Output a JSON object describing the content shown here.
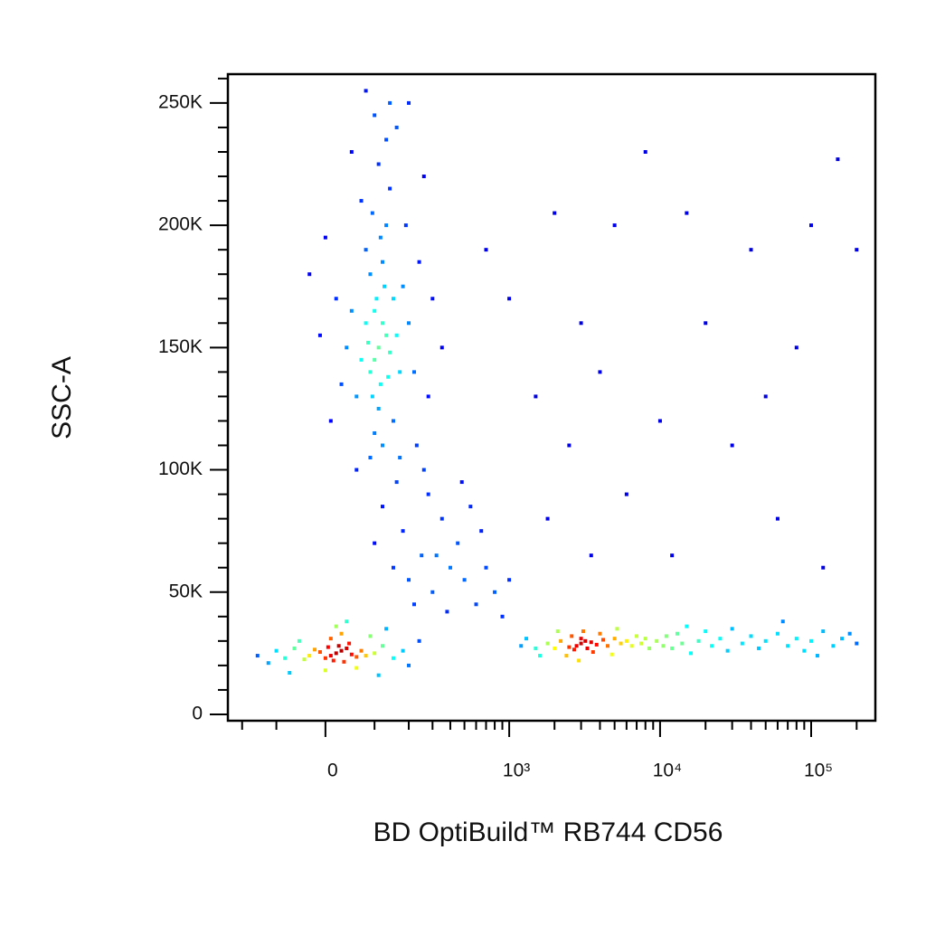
{
  "chart_data": {
    "type": "scatter",
    "xlabel": "BD OptiBuild™ RB744 CD56",
    "ylabel": "SSC-A",
    "colormap": "jet",
    "xscale": "biexponential",
    "xlim": [
      -256,
      266000
    ],
    "ylim": [
      -2600,
      261800
    ],
    "xticks": [
      0,
      {
        "value": 1000,
        "label": "10³"
      },
      {
        "value": 10000,
        "label": "10⁴"
      },
      {
        "value": 100000,
        "label": "10⁵"
      }
    ],
    "xminorticks": [
      -200,
      -100,
      100,
      200,
      300,
      400,
      500,
      600,
      700,
      800,
      900,
      2000,
      3000,
      4000,
      5000,
      6000,
      7000,
      8000,
      9000,
      20000,
      30000,
      40000,
      50000,
      60000,
      70000,
      80000,
      90000,
      200000
    ],
    "yticks": [
      0,
      {
        "value": 50000,
        "label": "50K"
      },
      {
        "value": 100000,
        "label": "100K"
      },
      {
        "value": 150000,
        "label": "150K"
      },
      {
        "value": 200000,
        "label": "200K"
      },
      {
        "value": 250000,
        "label": "250K"
      }
    ],
    "yminorticks": [
      10000,
      20000,
      30000,
      40000,
      60000,
      70000,
      80000,
      90000,
      110000,
      120000,
      130000,
      140000,
      160000,
      170000,
      180000,
      190000,
      210000,
      220000,
      230000,
      240000,
      260000
    ],
    "x": [
      20,
      10,
      30,
      0,
      40,
      -10,
      50,
      15,
      25,
      -20,
      60,
      5,
      35,
      -30,
      70,
      45,
      -40,
      80,
      10,
      -60,
      100,
      -80,
      120,
      0,
      30,
      -100,
      150,
      60,
      -50,
      90,
      -120,
      180,
      20,
      -70,
      130,
      200,
      -150,
      110,
      40,
      240,
      110,
      100,
      120,
      90,
      130,
      105,
      95,
      115,
      125,
      85,
      140,
      100,
      110,
      120,
      80,
      135,
      90,
      150,
      70,
      115,
      100,
      160,
      60,
      130,
      95,
      170,
      50,
      120,
      140,
      80,
      180,
      40,
      110,
      150,
      70,
      200,
      30,
      130,
      90,
      190,
      20,
      160,
      60,
      220,
      100,
      10,
      240,
      170,
      140,
      -10,
      260,
      50,
      280,
      200,
      0,
      300,
      230,
      80,
      350,
      -30,
      150,
      200,
      250,
      180,
      300,
      120,
      400,
      220,
      350,
      500,
      100,
      280,
      600,
      450,
      160,
      700,
      380,
      550,
      800,
      260,
      900,
      650,
      320,
      1000,
      480,
      3000,
      2800,
      3200,
      2500,
      3500,
      3000,
      2700,
      3800,
      2200,
      4200,
      3300,
      2000,
      4500,
      2600,
      5000,
      1800,
      3600,
      5500,
      1500,
      4000,
      6000,
      2400,
      6500,
      1300,
      7000,
      3100,
      1600,
      7500,
      2900,
      8000,
      1200,
      4800,
      8500,
      2100,
      5200,
      9500,
      10500,
      11000,
      12000,
      13000,
      14000,
      15000,
      16000,
      18000,
      20000,
      22000,
      25000,
      28000,
      30000,
      35000,
      40000,
      45000,
      50000,
      60000,
      70000,
      80000,
      90000,
      100000,
      120000,
      140000,
      160000,
      180000,
      200000,
      110000,
      65000,
      1000,
      1500,
      2000,
      3000,
      4000,
      5000,
      6000,
      8000,
      10000,
      15000,
      20000,
      30000,
      40000,
      60000,
      80000,
      100000,
      150000,
      200000,
      120000,
      1800,
      2500,
      700,
      3500,
      12000,
      50000
    ],
    "values": [
      25000,
      24000,
      26000,
      23000,
      27000,
      25500,
      24500,
      22000,
      28000,
      26500,
      23500,
      27500,
      21500,
      24000,
      26000,
      29000,
      22500,
      24000,
      31000,
      27000,
      25000,
      23000,
      28000,
      18000,
      33000,
      26000,
      23000,
      19000,
      30000,
      32000,
      21000,
      26000,
      36000,
      17000,
      35000,
      20000,
      24000,
      16000,
      38000,
      30000,
      150000,
      145000,
      160000,
      140000,
      155000,
      170000,
      130000,
      135000,
      175000,
      152000,
      148000,
      165000,
      125000,
      185000,
      160000,
      138000,
      180000,
      170000,
      145000,
      195000,
      115000,
      155000,
      130000,
      200000,
      205000,
      140000,
      165000,
      110000,
      215000,
      190000,
      175000,
      150000,
      225000,
      120000,
      210000,
      160000,
      135000,
      235000,
      105000,
      200000,
      170000,
      240000,
      100000,
      140000,
      245000,
      120000,
      185000,
      105000,
      250000,
      155000,
      220000,
      230000,
      130000,
      250000,
      195000,
      170000,
      110000,
      255000,
      150000,
      180000,
      60000,
      55000,
      65000,
      75000,
      50000,
      85000,
      60000,
      45000,
      80000,
      55000,
      70000,
      90000,
      45000,
      70000,
      95000,
      60000,
      42000,
      85000,
      50000,
      100000,
      40000,
      75000,
      65000,
      55000,
      95000,
      29000,
      28000,
      30000,
      27500,
      29500,
      31000,
      26500,
      28500,
      30000,
      30500,
      27000,
      27000,
      28000,
      32000,
      31000,
      29000,
      25500,
      29000,
      27000,
      33000,
      30000,
      24000,
      28000,
      31000,
      32000,
      34000,
      24000,
      29000,
      22000,
      31000,
      28000,
      24500,
      27000,
      34000,
      35000,
      30000,
      28000,
      32000,
      27000,
      33000,
      29000,
      36000,
      25000,
      30000,
      34000,
      28000,
      31000,
      26000,
      35000,
      29000,
      32000,
      27000,
      30000,
      33000,
      28000,
      31000,
      26000,
      30000,
      34000,
      28000,
      31000,
      33000,
      29000,
      24000,
      38000,
      170000,
      130000,
      205000,
      160000,
      140000,
      200000,
      90000,
      230000,
      120000,
      205000,
      160000,
      110000,
      190000,
      80000,
      150000,
      200000,
      227000,
      190000,
      60000,
      80000,
      110000,
      190000,
      65000,
      65000,
      130000
    ]
  }
}
